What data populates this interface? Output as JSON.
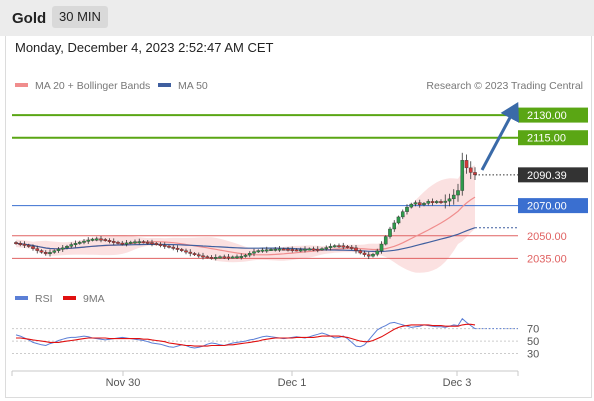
{
  "header": {
    "instrument": "Gold",
    "timeframe": "30 MIN",
    "datetime": "Monday, December 4, 2023 2:52:47 AM CET"
  },
  "colors": {
    "resistance": "#5aa614",
    "pivot": "#3a6fd0",
    "support": "#e06262",
    "arrow": "#3a6aa8",
    "candle_up": "#2e9a4a",
    "candle_down": "#d23a3a",
    "ma50": "#3f5f9f",
    "bollinger": "#f3a9a9",
    "rsi": "#5b7fd6",
    "rsi_ma": "#e01010"
  },
  "chart_data": [
    {
      "type": "candlestick",
      "legend": [
        {
          "name": "MA 20 + Bollinger Bands",
          "color": "#f08d8d"
        },
        {
          "name": "MA 50",
          "color": "#3f5f9f"
        }
      ],
      "legend_position": "top-left",
      "credit": "Research © 2023 Trading Central",
      "x_ticks": [
        "Nov 30",
        "Dec 1",
        "Dec 3"
      ],
      "ylim": [
        2026,
        2140
      ],
      "current_price": {
        "label": "2090.39",
        "value": 2090.39
      },
      "levels": [
        {
          "label": "2130.00",
          "value": 2130,
          "kind": "resistance"
        },
        {
          "label": "2115.00",
          "value": 2115,
          "kind": "resistance"
        },
        {
          "label": "2070.00",
          "value": 2070,
          "kind": "pivot"
        },
        {
          "label": "2050.00",
          "value": 2050,
          "kind": "support"
        },
        {
          "label": "2035.00",
          "value": 2035,
          "kind": "support"
        }
      ],
      "close": [
        2045.0,
        2044.5,
        2043.8,
        2042.9,
        2041.5,
        2040.2,
        2039.1,
        2038.2,
        2039.0,
        2040.1,
        2041.2,
        2042.0,
        2043.1,
        2044.2,
        2045.0,
        2045.8,
        2046.5,
        2047.2,
        2047.8,
        2048.0,
        2047.6,
        2047.0,
        2046.4,
        2045.8,
        2045.2,
        2044.9,
        2045.3,
        2045.8,
        2046.1,
        2046.2,
        2045.8,
        2045.5,
        2045.0,
        2044.4,
        2043.8,
        2043.2,
        2042.5,
        2041.8,
        2041.0,
        2040.1,
        2039.2,
        2038.3,
        2037.5,
        2036.8,
        2036.2,
        2035.8,
        2035.6,
        2035.8,
        2036.1,
        2036.0,
        2035.8,
        2036.0,
        2036.2,
        2036.4,
        2037.2,
        2038.4,
        2039.5,
        2040.2,
        2040.6,
        2040.8,
        2041.0,
        2041.2,
        2041.3,
        2041.2,
        2041.0,
        2040.8,
        2040.6,
        2040.8,
        2041.2,
        2041.4,
        2041.2,
        2041.0,
        2041.5,
        2042.2,
        2043.0,
        2043.5,
        2043.4,
        2043.0,
        2042.5,
        2042.0,
        2040.2,
        2038.6,
        2037.5,
        2036.5,
        2037.8,
        2040.0,
        2044.5,
        2049.5,
        2054.5,
        2058.5,
        2062.5,
        2066.0,
        2069.0,
        2071.0,
        2072.0,
        2070.5,
        2071.5,
        2072.8,
        2072.0,
        2072.8,
        2072.5,
        2073.0,
        2074.5,
        2077.0,
        2080.0,
        2100.0,
        2095.0,
        2092.0,
        2090.39
      ]
    },
    {
      "type": "line",
      "legend": [
        {
          "name": "RSI",
          "color": "#5b7fd6"
        },
        {
          "name": "9MA",
          "color": "#e01010"
        }
      ],
      "legend_position": "top-left",
      "y_ticks": [
        70,
        50,
        30
      ],
      "ylim": [
        10,
        100
      ],
      "rsi_last": 70,
      "series": [
        {
          "name": "RSI",
          "values": [
            60,
            58,
            55,
            52,
            48,
            46,
            44,
            43,
            46,
            48,
            51,
            53,
            55,
            56,
            56,
            57,
            58,
            57,
            55,
            54,
            53,
            52,
            53,
            54,
            55,
            56,
            55,
            54,
            53,
            52,
            51,
            49,
            47,
            46,
            45,
            43,
            41,
            40,
            42,
            44,
            43,
            40,
            39,
            40,
            42,
            45,
            47,
            46,
            44,
            43,
            45,
            47,
            48,
            49,
            50,
            52,
            53,
            55,
            57,
            58,
            57,
            56,
            55,
            54,
            55,
            56,
            57,
            56,
            55,
            57,
            59,
            61,
            63,
            61,
            58,
            55,
            56,
            58,
            54,
            48,
            42,
            41,
            44,
            52,
            60,
            68,
            72,
            75,
            79,
            80,
            78,
            76,
            74,
            72,
            73,
            74,
            76,
            75,
            74,
            73,
            73,
            72,
            74,
            76,
            75,
            86,
            80,
            75,
            70
          ]
        },
        {
          "name": "9MA",
          "values": [
            55,
            55,
            54,
            53,
            52,
            51,
            50,
            49,
            48,
            48,
            48,
            49,
            50,
            51,
            52,
            53,
            54,
            55,
            55,
            55,
            55,
            55,
            54,
            54,
            54,
            54,
            54,
            54,
            54,
            54,
            53,
            53,
            52,
            51,
            50,
            49,
            47,
            46,
            45,
            44,
            43,
            43,
            42,
            42,
            42,
            42,
            43,
            43,
            43,
            43,
            44,
            44,
            45,
            46,
            47,
            48,
            49,
            50,
            52,
            53,
            54,
            55,
            55,
            55,
            55,
            55,
            56,
            56,
            56,
            56,
            56,
            57,
            58,
            58,
            58,
            58,
            58,
            57,
            56,
            54,
            52,
            50,
            49,
            49,
            51,
            54,
            57,
            61,
            65,
            69,
            72,
            74,
            75,
            76,
            76,
            76,
            76,
            76,
            75,
            75,
            75,
            74,
            74,
            74,
            74,
            76,
            77,
            77,
            76
          ]
        }
      ]
    }
  ]
}
